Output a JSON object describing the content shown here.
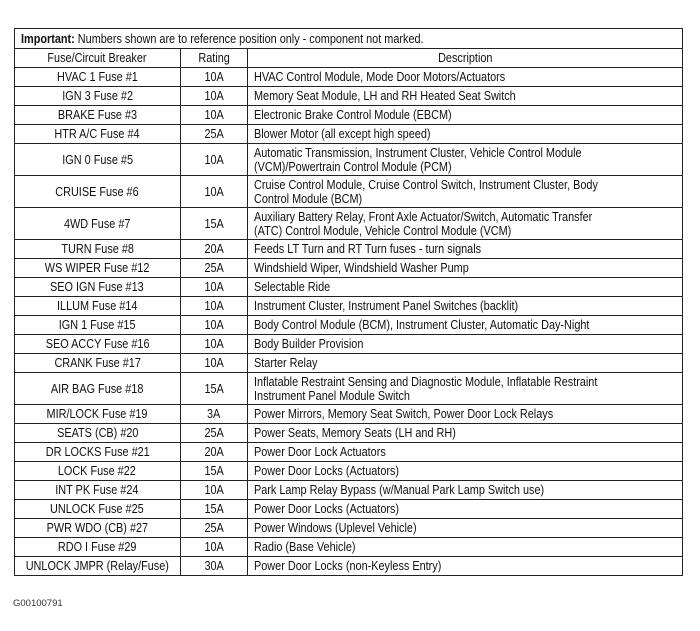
{
  "notice": {
    "bold": "Important:",
    "text": " Numbers shown are to reference position only - component not marked."
  },
  "headers": [
    "Fuse/Circuit Breaker",
    "Rating",
    "Description"
  ],
  "rows": [
    {
      "fuse": "HVAC 1 Fuse #1",
      "rating": "10A",
      "description": [
        "HVAC Control Module, Mode Door Motors/Actuators"
      ]
    },
    {
      "fuse": "IGN 3 Fuse #2",
      "rating": "10A",
      "description": [
        "Memory Seat Module, LH and RH Heated Seat Switch"
      ]
    },
    {
      "fuse": "BRAKE Fuse #3",
      "rating": "10A",
      "description": [
        "Electronic Brake Control Module (EBCM)"
      ]
    },
    {
      "fuse": "HTR A/C Fuse #4",
      "rating": "25A",
      "description": [
        "Blower Motor (all except high speed)"
      ]
    },
    {
      "fuse": "IGN 0 Fuse #5",
      "rating": "10A",
      "description": [
        "Automatic Transmission, Instrument Cluster, Vehicle Control Module",
        "(VCM)/Powertrain Control Module (PCM)"
      ]
    },
    {
      "fuse": "CRUISE Fuse #6",
      "rating": "10A",
      "description": [
        "Cruise Control Module, Cruise Control Switch, Instrument Cluster, Body",
        "Control Module (BCM)"
      ]
    },
    {
      "fuse": "4WD Fuse #7",
      "rating": "15A",
      "description": [
        "Auxiliary Battery Relay, Front Axle Actuator/Switch, Automatic Transfer",
        "(ATC) Control Module, Vehicle Control Module (VCM)"
      ]
    },
    {
      "fuse": "TURN Fuse #8",
      "rating": "20A",
      "description": [
        "Feeds LT Turn and RT Turn fuses - turn signals"
      ]
    },
    {
      "fuse": "WS WIPER Fuse #12",
      "rating": "25A",
      "description": [
        "Windshield Wiper, Windshield Washer Pump"
      ]
    },
    {
      "fuse": "SEO IGN Fuse #13",
      "rating": "10A",
      "description": [
        "Selectable Ride"
      ]
    },
    {
      "fuse": "ILLUM Fuse #14",
      "rating": "10A",
      "description": [
        "Instrument Cluster, Instrument Panel Switches (backlit)"
      ]
    },
    {
      "fuse": "IGN 1 Fuse #15",
      "rating": "10A",
      "description": [
        "Body Control Module (BCM), Instrument Cluster, Automatic Day-Night"
      ]
    },
    {
      "fuse": "SEO ACCY Fuse #16",
      "rating": "10A",
      "description": [
        "Body Builder Provision"
      ]
    },
    {
      "fuse": "CRANK Fuse #17",
      "rating": "10A",
      "description": [
        "Starter Relay"
      ]
    },
    {
      "fuse": "AIR BAG Fuse #18",
      "rating": "15A",
      "description": [
        "Inflatable Restraint Sensing and Diagnostic Module, Inflatable Restraint",
        "Instrument Panel Module Switch"
      ]
    },
    {
      "fuse": "MIR/LOCK Fuse #19",
      "rating": "3A",
      "description": [
        "Power Mirrors, Memory Seat Switch, Power Door Lock Relays"
      ]
    },
    {
      "fuse": "SEATS (CB) #20",
      "rating": "25A",
      "description": [
        "Power Seats, Memory Seats (LH and RH)"
      ]
    },
    {
      "fuse": "DR LOCKS Fuse #21",
      "rating": "20A",
      "description": [
        "Power Door Lock Actuators"
      ]
    },
    {
      "fuse": "LOCK Fuse #22",
      "rating": "15A",
      "description": [
        "Power Door Locks (Actuators)"
      ]
    },
    {
      "fuse": "INT PK Fuse #24",
      "rating": "10A",
      "description": [
        "Park Lamp Relay Bypass (w/Manual Park Lamp Switch use)"
      ]
    },
    {
      "fuse": "UNLOCK Fuse #25",
      "rating": "15A",
      "description": [
        "Power Door Locks (Actuators)"
      ]
    },
    {
      "fuse": "PWR WDO (CB) #27",
      "rating": "25A",
      "description": [
        "Power Windows (Uplevel Vehicle)"
      ]
    },
    {
      "fuse": "RDO I Fuse #29",
      "rating": "10A",
      "description": [
        "Radio (Base Vehicle)"
      ]
    },
    {
      "fuse": "UNLOCK JMPR (Relay/Fuse)",
      "rating": "30A",
      "description": [
        "Power Door Locks (non-Keyless Entry)"
      ]
    }
  ],
  "caption": "G00100791"
}
